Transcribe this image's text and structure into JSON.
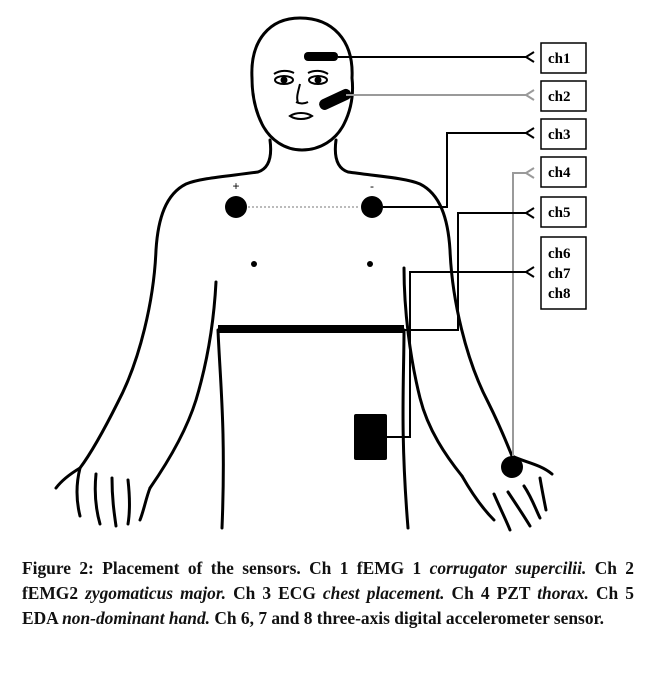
{
  "figure": {
    "polarity": {
      "plus": "+",
      "minus": "-"
    },
    "channels": [
      {
        "id": "ch1",
        "label": "ch1",
        "color": "#000000"
      },
      {
        "id": "ch2",
        "label": "ch2",
        "color": "#9a9a9a"
      },
      {
        "id": "ch3",
        "label": "ch3",
        "color": "#000000"
      },
      {
        "id": "ch4",
        "label": "ch4",
        "color": "#9a9a9a"
      },
      {
        "id": "ch5",
        "label": "ch5",
        "color": "#000000"
      },
      {
        "id": "ch678",
        "labels": [
          "ch6",
          "ch7",
          "ch8"
        ],
        "color": "#000000"
      }
    ]
  },
  "caption": {
    "prefix": "Figure 2: Placement of the sensors. Ch 1 fEMG 1 ",
    "i1": "corrugator supercilii.",
    "t2": " Ch 2 fEMG2 ",
    "i2": "zygomaticus major.",
    "t3": " Ch 3 ECG ",
    "i3": "chest placement.",
    "t4": " Ch 4 PZT ",
    "i4": "thorax.",
    "t5": " Ch 5 EDA ",
    "i5": "non-dominant hand.",
    "t6": " Ch 6, 7 and 8 three-axis digital accelerometer sensor."
  }
}
